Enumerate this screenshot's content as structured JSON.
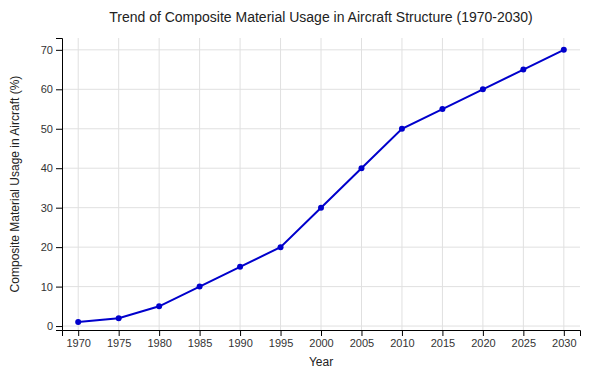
{
  "chart_data": {
    "type": "line",
    "title": "Trend of Composite Material Usage in Aircraft Structure (1970-2030)",
    "xlabel": "Year",
    "ylabel": "Composite Material Usage in Aircraft (%)",
    "x": [
      1970,
      1975,
      1980,
      1985,
      1990,
      1995,
      2000,
      2005,
      2010,
      2015,
      2020,
      2025,
      2030
    ],
    "values": [
      1,
      2,
      5,
      10,
      15,
      20,
      30,
      40,
      50,
      55,
      60,
      65,
      70
    ],
    "color": "#0000CC",
    "marker": "circle",
    "xlim": [
      1968,
      2032
    ],
    "ylim": [
      -1,
      73
    ],
    "xticks": [
      1970,
      1975,
      1980,
      1985,
      1990,
      1995,
      2000,
      2005,
      2010,
      2015,
      2020,
      2025,
      2030
    ],
    "yticks": [
      0,
      10,
      20,
      30,
      40,
      50,
      60,
      70
    ],
    "grid": true
  }
}
